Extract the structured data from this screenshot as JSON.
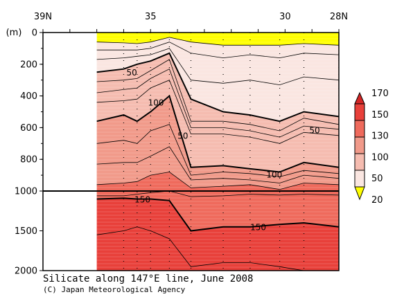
{
  "chart_data": {
    "type": "heatmap",
    "title": "Silicate along 147°E line, June 2008",
    "credit": "(C) Japan Meteorological Agency",
    "xlabel": "",
    "ylabel": "(m)",
    "x_ticks": [
      {
        "lat": 39,
        "label": "39N"
      },
      {
        "lat": 35,
        "label": "35"
      },
      {
        "lat": 30,
        "label": "30"
      },
      {
        "lat": 28,
        "label": "28N"
      }
    ],
    "xlim": [
      39,
      28
    ],
    "ylim": [
      0,
      2000
    ],
    "y_ticks": [
      {
        "depth": 0,
        "label": "0"
      },
      {
        "depth": 200,
        "label": "200"
      },
      {
        "depth": 400,
        "label": "400"
      },
      {
        "depth": 600,
        "label": "600"
      },
      {
        "depth": 800,
        "label": "800"
      },
      {
        "depth": 1000,
        "label": "1000"
      },
      {
        "depth": 1500,
        "label": "1500"
      },
      {
        "depth": 2000,
        "label": "2000"
      }
    ],
    "axis_break_depth": 1000,
    "no_data_region": {
      "lat_from": 39,
      "lat_to": 37
    },
    "legend": {
      "placement": "right",
      "levels": [
        20,
        50,
        100,
        130,
        150,
        170
      ],
      "labels": [
        "170",
        "150",
        "130",
        "100",
        "50",
        "20"
      ],
      "colors": [
        "#ffff00",
        "#fae6e1",
        "#f5bcb0",
        "#f19a8a",
        "#ef6a5c",
        "#e8403a",
        "#d42525"
      ]
    },
    "contour_lines": [
      {
        "level": 20,
        "bold": false,
        "depths": [
          60,
          65,
          70,
          60,
          30,
          60,
          80,
          80,
          80,
          70,
          80
        ]
      },
      {
        "level": 30,
        "bold": false,
        "depths": [
          110,
          110,
          110,
          100,
          60,
          130,
          160,
          140,
          160,
          130,
          140
        ]
      },
      {
        "level": 40,
        "bold": false,
        "depths": [
          170,
          160,
          150,
          140,
          100,
          300,
          320,
          300,
          330,
          280,
          300
        ]
      },
      {
        "level": 50,
        "bold": true,
        "depths": [
          250,
          230,
          200,
          180,
          130,
          420,
          500,
          520,
          560,
          500,
          530
        ]
      },
      {
        "level": 60,
        "bold": false,
        "depths": [
          310,
          300,
          290,
          240,
          170,
          560,
          560,
          580,
          620,
          540,
          580
        ]
      },
      {
        "level": 70,
        "bold": false,
        "depths": [
          380,
          360,
          350,
          290,
          230,
          600,
          600,
          620,
          660,
          590,
          610
        ]
      },
      {
        "level": 80,
        "bold": false,
        "depths": [
          440,
          430,
          420,
          350,
          300,
          640,
          640,
          660,
          700,
          630,
          650
        ]
      },
      {
        "level": 100,
        "bold": true,
        "depths": [
          560,
          520,
          560,
          500,
          400,
          850,
          840,
          860,
          880,
          820,
          850
        ]
      },
      {
        "level": 110,
        "bold": false,
        "depths": [
          700,
          680,
          700,
          620,
          580,
          900,
          880,
          890,
          910,
          870,
          890
        ]
      },
      {
        "level": 120,
        "bold": false,
        "depths": [
          830,
          820,
          820,
          780,
          720,
          930,
          920,
          930,
          950,
          900,
          920
        ]
      },
      {
        "level": 130,
        "bold": false,
        "depths": [
          960,
          950,
          940,
          900,
          880,
          980,
          970,
          960,
          990,
          950,
          960
        ]
      },
      {
        "level": 140,
        "bold": false,
        "depths": [
          1060,
          1060,
          1040,
          1020,
          1000,
          1070,
          1060,
          1040,
          1050,
          1040,
          1050
        ]
      },
      {
        "level": 150,
        "bold": true,
        "depths": [
          1100,
          1090,
          1100,
          1100,
          1120,
          1500,
          1450,
          1450,
          1420,
          1400,
          1450
        ]
      },
      {
        "level": 160,
        "bold": false,
        "depths": [
          1550,
          1500,
          1450,
          1500,
          1600,
          1950,
          1900,
          1900,
          1950,
          2000,
          2000
        ]
      }
    ],
    "contour_lats": [
      37,
      36,
      35.5,
      35,
      34.3,
      33.5,
      32.3,
      31.3,
      30.2,
      29.3,
      28
    ],
    "contour_labels": [
      {
        "text": "50",
        "lat": 35.7,
        "depth": 250
      },
      {
        "text": "100",
        "lat": 34.8,
        "depth": 440
      },
      {
        "text": "50",
        "lat": 33.8,
        "depth": 650
      },
      {
        "text": "50",
        "lat": 28.9,
        "depth": 615
      },
      {
        "text": "100",
        "lat": 30.4,
        "depth": 895
      },
      {
        "text": "150",
        "lat": 35.3,
        "depth": 1105
      },
      {
        "text": "150",
        "lat": 31.0,
        "depth": 1450
      }
    ]
  }
}
